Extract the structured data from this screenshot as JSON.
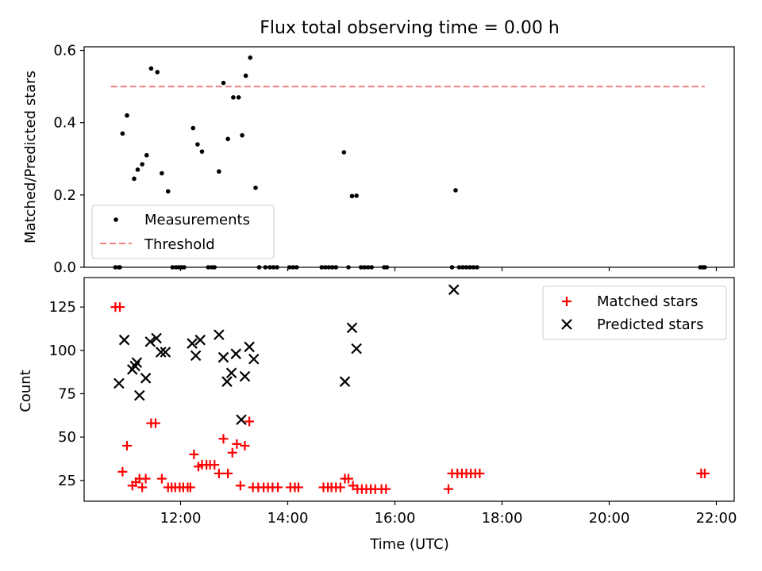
{
  "title": "Flux total observing time = 0.00 h",
  "chart_data": [
    {
      "type": "scatter",
      "ylabel": "Matched/Predicted stars",
      "xlabel": "",
      "ylim": [
        0,
        0.61
      ],
      "yticks": [
        0.0,
        0.2,
        0.4,
        0.6
      ],
      "ytick_labels": [
        "0.0",
        "0.2",
        "0.4",
        "0.6"
      ],
      "legend_position": "lower-left",
      "grid": false,
      "threshold": {
        "name": "Threshold",
        "value": 0.5,
        "x_start": "10:42",
        "x_end": "21:47",
        "color": "#f08080",
        "style": "dashed"
      },
      "series": [
        {
          "name": "Measurements",
          "color": "#000000",
          "marker": "dot",
          "points": [
            [
              "10:47",
              0.0
            ],
            [
              "10:51",
              0.0
            ],
            [
              "10:52",
              0.0
            ],
            [
              "10:55",
              0.37
            ],
            [
              "11:00",
              0.42
            ],
            [
              "11:08",
              0.245
            ],
            [
              "11:12",
              0.27
            ],
            [
              "11:17",
              0.285
            ],
            [
              "11:22",
              0.31
            ],
            [
              "11:27",
              0.55
            ],
            [
              "11:34",
              0.54
            ],
            [
              "11:39",
              0.26
            ],
            [
              "11:46",
              0.21
            ],
            [
              "11:51",
              0.0
            ],
            [
              "11:55",
              0.0
            ],
            [
              "11:58",
              0.0
            ],
            [
              "12:01",
              0.0
            ],
            [
              "12:04",
              0.0
            ],
            [
              "12:14",
              0.385
            ],
            [
              "12:19",
              0.34
            ],
            [
              "12:24",
              0.32
            ],
            [
              "12:31",
              0.0
            ],
            [
              "12:35",
              0.0
            ],
            [
              "12:38",
              0.0
            ],
            [
              "12:43",
              0.265
            ],
            [
              "12:48",
              0.51
            ],
            [
              "12:53",
              0.355
            ],
            [
              "12:59",
              0.47
            ],
            [
              "13:05",
              0.47
            ],
            [
              "13:09",
              0.365
            ],
            [
              "13:13",
              0.53
            ],
            [
              "13:18",
              0.58
            ],
            [
              "13:24",
              0.22
            ],
            [
              "13:28",
              0.0
            ],
            [
              "13:35",
              0.0
            ],
            [
              "13:40",
              0.0
            ],
            [
              "13:44",
              0.0
            ],
            [
              "13:48",
              0.0
            ],
            [
              "14:02",
              0.0
            ],
            [
              "14:06",
              0.0
            ],
            [
              "14:10",
              0.0
            ],
            [
              "14:38",
              0.0
            ],
            [
              "14:42",
              0.0
            ],
            [
              "14:46",
              0.0
            ],
            [
              "14:50",
              0.0
            ],
            [
              "14:54",
              0.0
            ],
            [
              "15:03",
              0.318
            ],
            [
              "15:08",
              0.0
            ],
            [
              "15:12",
              0.197
            ],
            [
              "15:17",
              0.198
            ],
            [
              "15:22",
              0.0
            ],
            [
              "15:26",
              0.0
            ],
            [
              "15:30",
              0.0
            ],
            [
              "15:34",
              0.0
            ],
            [
              "15:48",
              0.0
            ],
            [
              "15:51",
              0.0
            ],
            [
              "17:04",
              0.0
            ],
            [
              "17:08",
              0.213
            ],
            [
              "17:12",
              0.0
            ],
            [
              "17:16",
              0.0
            ],
            [
              "17:20",
              0.0
            ],
            [
              "17:24",
              0.0
            ],
            [
              "17:28",
              0.0
            ],
            [
              "17:32",
              0.0
            ],
            [
              "21:42",
              0.0
            ],
            [
              "21:45",
              0.0
            ],
            [
              "21:47",
              0.0
            ]
          ]
        }
      ]
    },
    {
      "type": "scatter",
      "ylabel": "Count",
      "xlabel": "Time (UTC)",
      "xlim": [
        "10:12",
        "22:20"
      ],
      "xticks": [
        "12:00",
        "14:00",
        "16:00",
        "18:00",
        "20:00",
        "22:00"
      ],
      "ylim": [
        13,
        142
      ],
      "yticks": [
        25,
        50,
        75,
        100,
        125
      ],
      "ytick_labels": [
        "25",
        "50",
        "75",
        "100",
        "125"
      ],
      "legend_position": "upper-right",
      "grid": false,
      "series": [
        {
          "name": "Matched stars",
          "color": "#ff0000",
          "marker": "plus",
          "points": [
            [
              "10:47",
              125
            ],
            [
              "10:52",
              125
            ],
            [
              "10:55",
              30
            ],
            [
              "11:00",
              45
            ],
            [
              "11:06",
              22
            ],
            [
              "11:10",
              24
            ],
            [
              "11:14",
              26
            ],
            [
              "11:17",
              21
            ],
            [
              "11:21",
              26
            ],
            [
              "11:27",
              58
            ],
            [
              "11:32",
              58
            ],
            [
              "11:39",
              26
            ],
            [
              "11:46",
              21
            ],
            [
              "11:50",
              21
            ],
            [
              "11:54",
              21
            ],
            [
              "11:59",
              21
            ],
            [
              "12:03",
              21
            ],
            [
              "12:08",
              21
            ],
            [
              "12:11",
              21
            ],
            [
              "12:15",
              40
            ],
            [
              "12:20",
              33
            ],
            [
              "12:24",
              34
            ],
            [
              "12:29",
              34
            ],
            [
              "12:33",
              34
            ],
            [
              "12:38",
              34
            ],
            [
              "12:43",
              29
            ],
            [
              "12:48",
              49
            ],
            [
              "12:53",
              29
            ],
            [
              "12:58",
              41
            ],
            [
              "13:03",
              46
            ],
            [
              "13:07",
              22
            ],
            [
              "13:12",
              45
            ],
            [
              "13:17",
              59
            ],
            [
              "13:21",
              21
            ],
            [
              "13:27",
              21
            ],
            [
              "13:33",
              21
            ],
            [
              "13:38",
              21
            ],
            [
              "13:43",
              21
            ],
            [
              "13:49",
              21
            ],
            [
              "14:03",
              21
            ],
            [
              "14:08",
              21
            ],
            [
              "14:12",
              21
            ],
            [
              "14:40",
              21
            ],
            [
              "14:45",
              21
            ],
            [
              "14:49",
              21
            ],
            [
              "14:54",
              21
            ],
            [
              "14:59",
              21
            ],
            [
              "15:04",
              26
            ],
            [
              "15:08",
              26
            ],
            [
              "15:13",
              22
            ],
            [
              "15:18",
              20
            ],
            [
              "15:23",
              20
            ],
            [
              "15:28",
              20
            ],
            [
              "15:33",
              20
            ],
            [
              "15:38",
              20
            ],
            [
              "15:45",
              20
            ],
            [
              "15:50",
              20
            ],
            [
              "17:00",
              20
            ],
            [
              "17:04",
              29
            ],
            [
              "17:10",
              29
            ],
            [
              "17:15",
              29
            ],
            [
              "17:20",
              29
            ],
            [
              "17:25",
              29
            ],
            [
              "17:30",
              29
            ],
            [
              "17:35",
              29
            ],
            [
              "21:43",
              29
            ],
            [
              "21:47",
              29
            ]
          ]
        },
        {
          "name": "Predicted stars",
          "color": "#000000",
          "marker": "x",
          "points": [
            [
              "10:51",
              81
            ],
            [
              "10:57",
              106
            ],
            [
              "11:06",
              89
            ],
            [
              "11:09",
              91
            ],
            [
              "11:11",
              93
            ],
            [
              "11:14",
              74
            ],
            [
              "11:21",
              84
            ],
            [
              "11:26",
              105
            ],
            [
              "11:33",
              107
            ],
            [
              "11:38",
              99
            ],
            [
              "11:43",
              99
            ],
            [
              "12:13",
              104
            ],
            [
              "12:17",
              97
            ],
            [
              "12:22",
              106
            ],
            [
              "12:43",
              109
            ],
            [
              "12:48",
              96
            ],
            [
              "12:52",
              82
            ],
            [
              "12:57",
              87
            ],
            [
              "13:02",
              98
            ],
            [
              "13:08",
              60
            ],
            [
              "13:12",
              85
            ],
            [
              "13:17",
              102
            ],
            [
              "13:22",
              95
            ],
            [
              "15:04",
              82
            ],
            [
              "15:12",
              113
            ],
            [
              "15:17",
              101
            ],
            [
              "17:06",
              135
            ]
          ]
        }
      ]
    }
  ]
}
